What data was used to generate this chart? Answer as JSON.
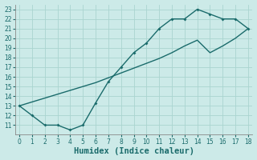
{
  "xlabel": "Humidex (Indice chaleur)",
  "bg_color": "#cceae8",
  "line_color": "#1a6b6b",
  "grid_color": "#aad4d0",
  "upper_x": [
    0,
    1,
    2,
    3,
    4,
    5,
    6,
    7,
    8,
    9,
    10,
    11,
    12,
    13,
    14,
    15,
    16,
    17,
    18
  ],
  "upper_y": [
    13,
    12,
    11,
    11,
    10.5,
    11,
    13.3,
    15.5,
    17,
    18.5,
    19.5,
    21,
    22,
    22,
    23,
    22.5,
    22,
    22,
    21
  ],
  "lower_x": [
    0,
    1,
    2,
    3,
    4,
    5,
    6,
    7,
    8,
    9,
    10,
    11,
    12,
    13,
    14,
    15,
    16,
    17,
    18
  ],
  "lower_y": [
    13,
    13.4,
    13.8,
    14.2,
    14.6,
    15.0,
    15.4,
    15.9,
    16.4,
    16.9,
    17.4,
    17.9,
    18.5,
    19.2,
    19.8,
    18.5,
    19.2,
    20.0,
    21.0
  ],
  "xlim": [
    -0.3,
    18.3
  ],
  "ylim": [
    10,
    23.5
  ],
  "xticks": [
    0,
    1,
    2,
    3,
    4,
    5,
    6,
    7,
    8,
    9,
    10,
    11,
    12,
    13,
    14,
    15,
    16,
    17,
    18
  ],
  "yticks": [
    11,
    12,
    13,
    14,
    15,
    16,
    17,
    18,
    19,
    20,
    21,
    22,
    23
  ],
  "tick_fontsize": 5.5,
  "label_fontsize": 7.5
}
